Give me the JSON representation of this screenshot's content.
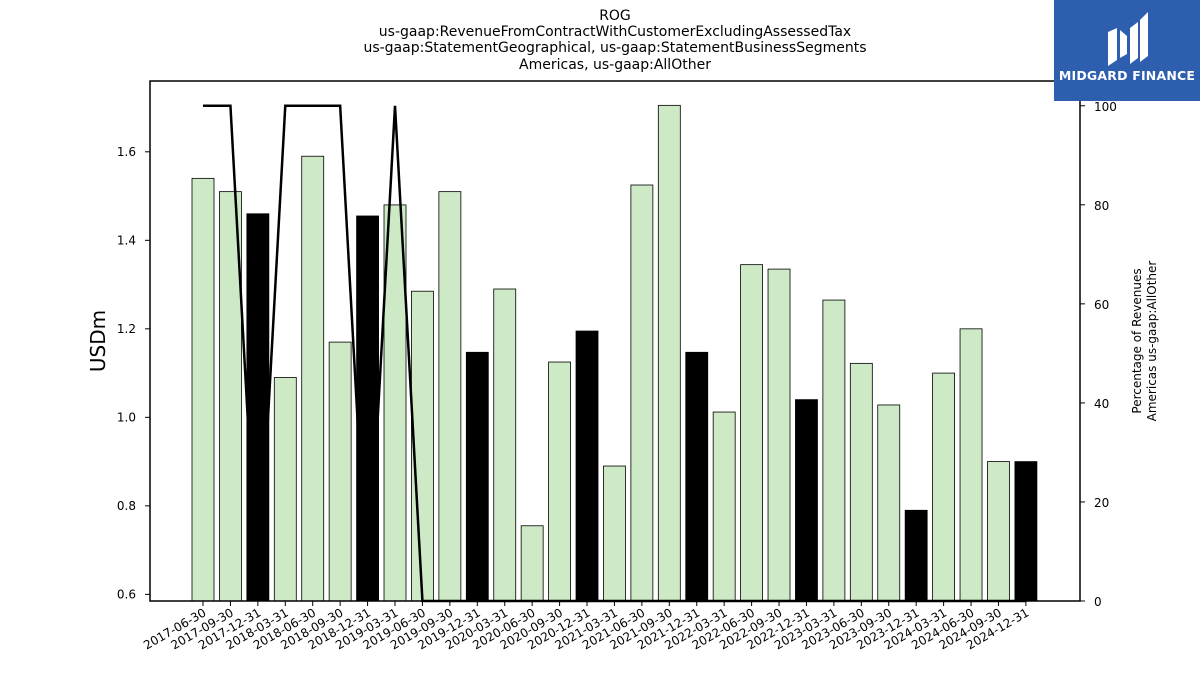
{
  "chart_data": {
    "type": "bar",
    "title_lines": [
      "ROG",
      "us-gaap:RevenueFromContractWithCustomerExcludingAssessedTax",
      "us-gaap:StatementGeographical, us-gaap:StatementBusinessSegments",
      "Americas, us-gaap:AllOther"
    ],
    "ylabel": "USDm",
    "y2label_lines": [
      "Percentage of Revenues",
      "Americas us-gaap:AllOther"
    ],
    "ylim": [
      0.585,
      1.76
    ],
    "y2lim": [
      0,
      105
    ],
    "yticks": [
      "0.6",
      "0.8",
      "1.0",
      "1.2",
      "1.4",
      "1.6"
    ],
    "y2ticks": [
      "0",
      "20",
      "40",
      "60",
      "80",
      "100"
    ],
    "categories": [
      "2017-06-30",
      "2017-09-30",
      "2017-12-31",
      "2018-03-31",
      "2018-06-30",
      "2018-09-30",
      "2018-12-31",
      "2019-03-31",
      "2019-06-30",
      "2019-09-30",
      "2019-12-31",
      "2020-03-31",
      "2020-06-30",
      "2020-09-30",
      "2020-12-31",
      "2021-03-31",
      "2021-06-30",
      "2021-09-30",
      "2021-12-31",
      "2022-03-31",
      "2022-06-30",
      "2022-09-30",
      "2022-12-31",
      "2023-03-31",
      "2023-06-30",
      "2023-09-30",
      "2023-12-31",
      "2024-03-31",
      "2024-06-30",
      "2024-09-30",
      "2024-12-31"
    ],
    "values": [
      1.54,
      1.51,
      1.46,
      1.09,
      1.59,
      1.17,
      1.455,
      1.48,
      1.285,
      1.51,
      1.147,
      1.29,
      0.755,
      1.125,
      1.195,
      0.89,
      1.525,
      1.705,
      1.147,
      1.012,
      1.345,
      1.335,
      1.04,
      1.265,
      1.122,
      1.028,
      0.79,
      1.1,
      1.2,
      0.9,
      0.9
    ],
    "annual": [
      false,
      false,
      true,
      false,
      false,
      false,
      true,
      false,
      false,
      false,
      true,
      false,
      false,
      false,
      true,
      false,
      false,
      false,
      true,
      false,
      false,
      false,
      true,
      false,
      false,
      false,
      true,
      false,
      false,
      false,
      true
    ],
    "line_values": [
      100,
      100,
      0,
      100,
      100,
      100,
      0,
      100,
      0,
      0,
      0,
      0,
      0,
      0,
      0,
      0,
      0,
      0,
      0,
      0,
      0,
      0,
      0,
      0,
      0,
      0,
      0,
      0,
      0,
      0,
      0
    ],
    "colors": {
      "quarter_bar": "#cde9c5",
      "annual_bar": "#000000",
      "line": "#000000"
    },
    "grid": false
  },
  "logo": {
    "text": "MIDGARD FINANCE",
    "icon": "midgard-logo-icon",
    "bg": "#2e5fae"
  }
}
